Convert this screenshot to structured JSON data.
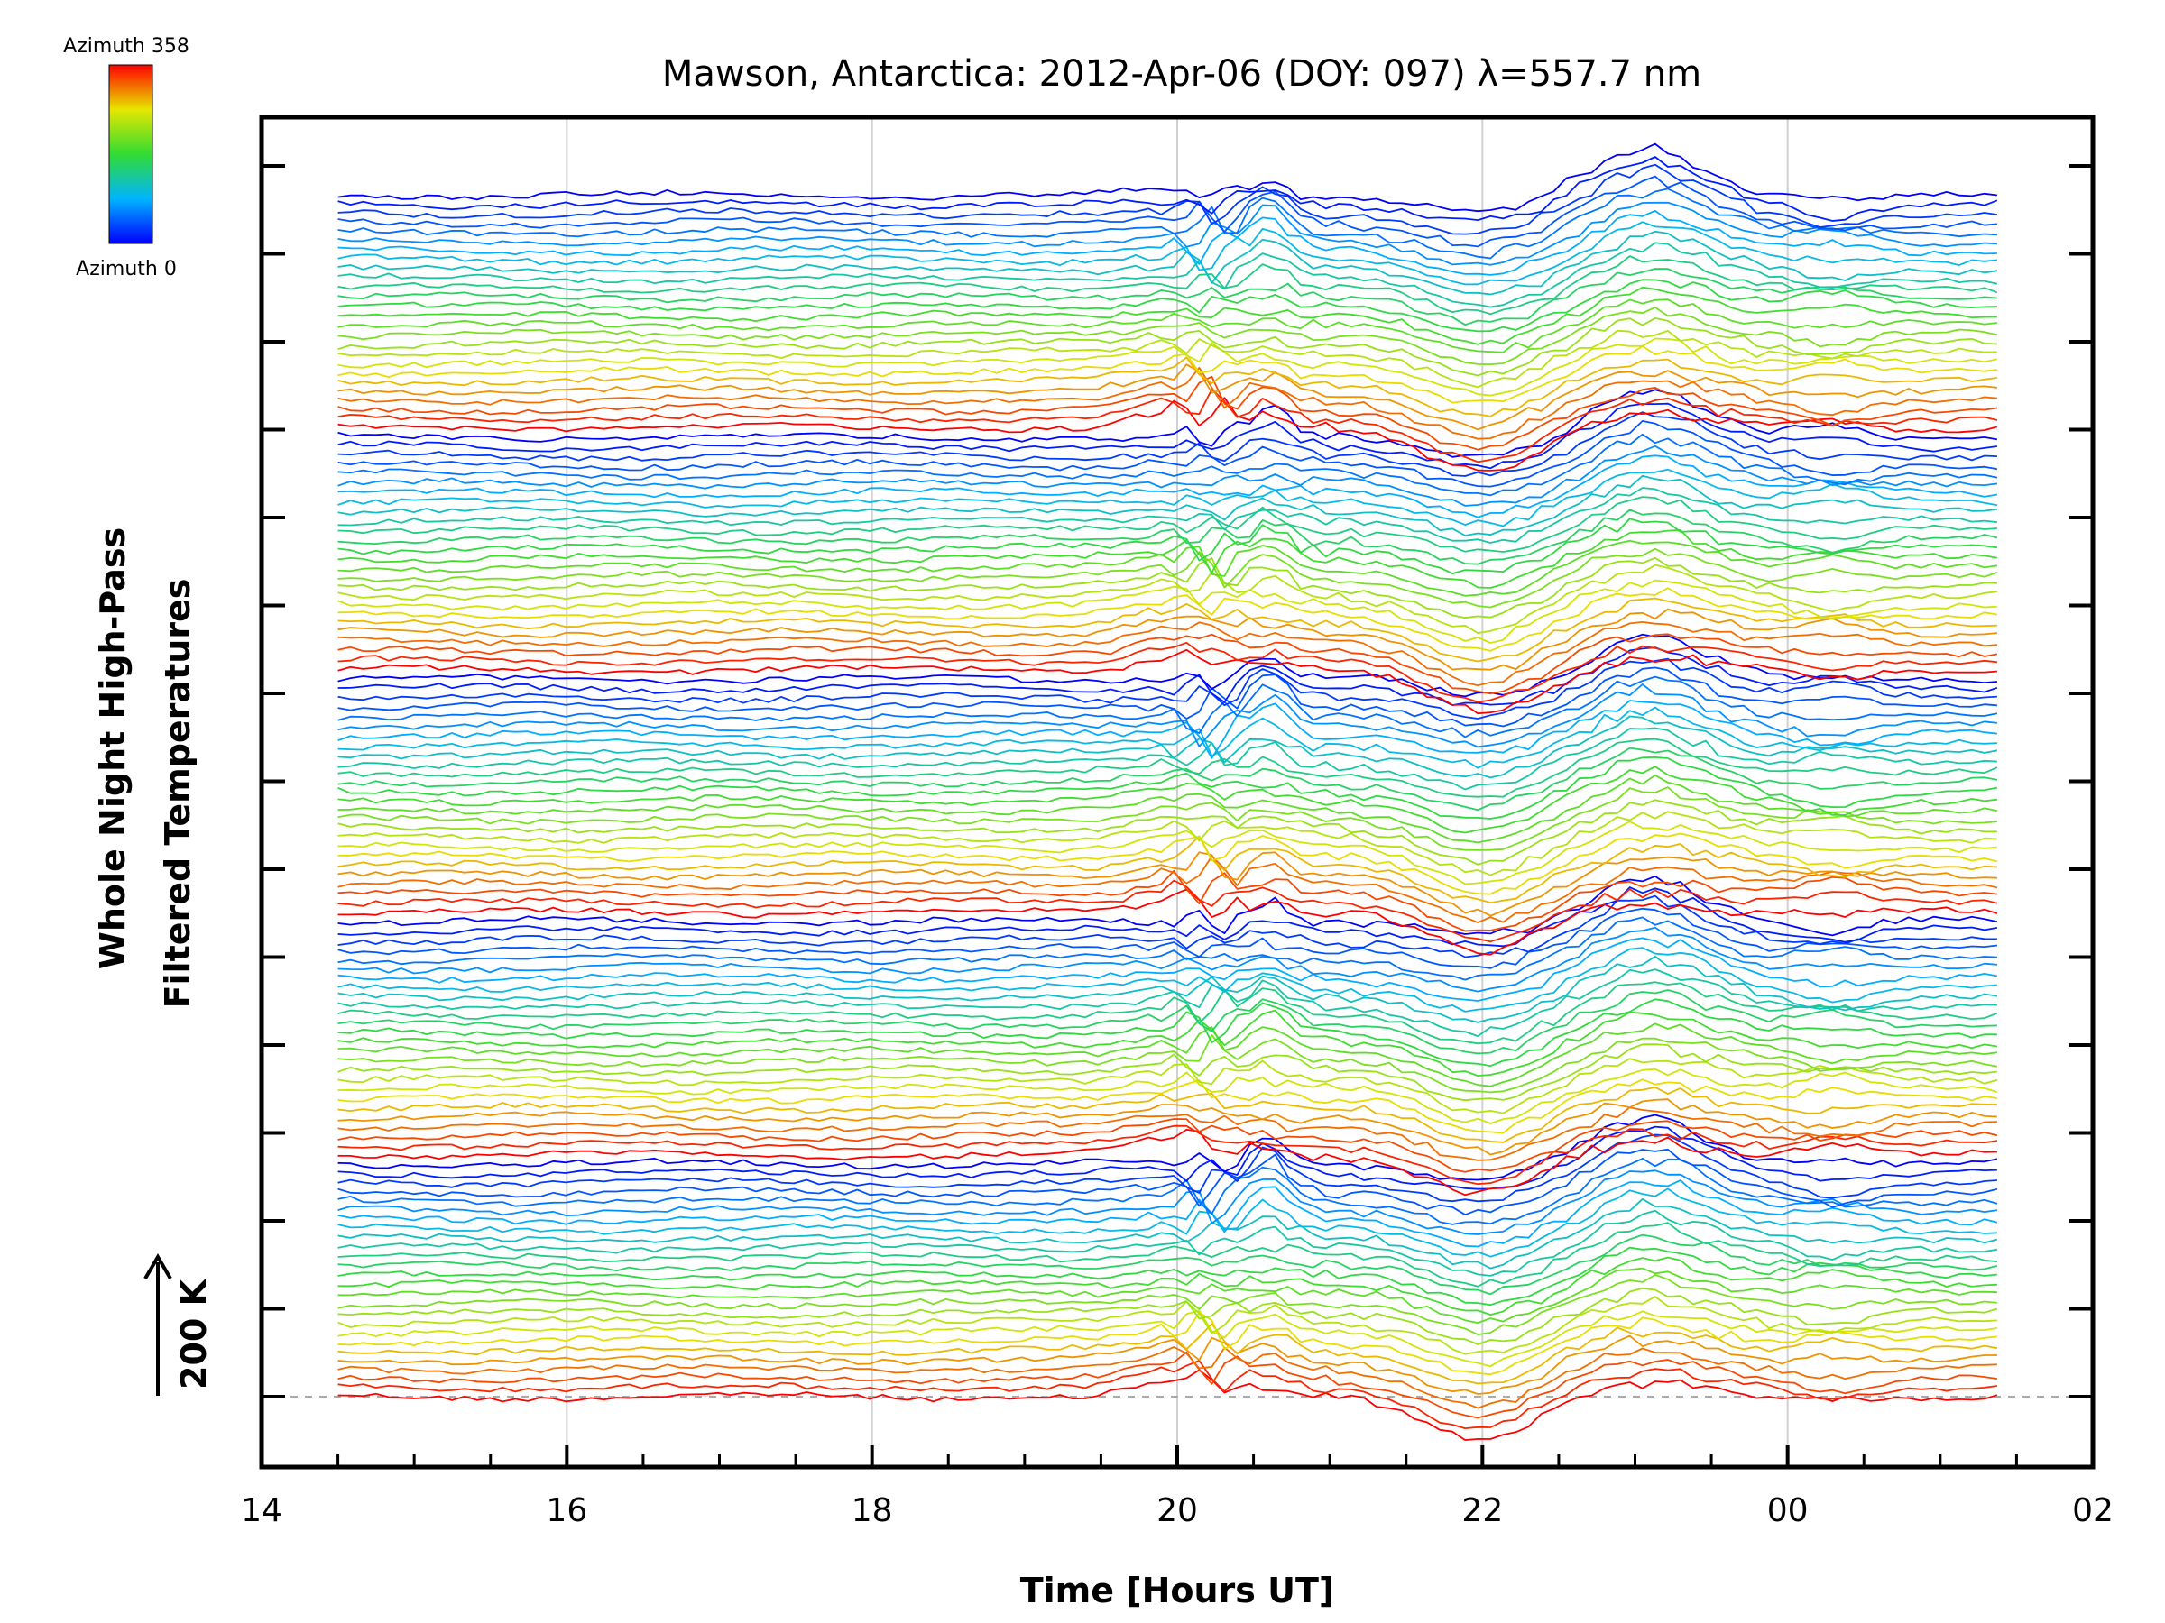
{
  "chart_data": {
    "type": "line",
    "title": "Mawson, Antarctica: 2012-Apr-06 (DOY: 097) λ=557.7 nm",
    "xlabel": "Time [Hours UT]",
    "ylabel_line1": "Whole Night High-Pass",
    "ylabel_line2": "Filtered Temperatures",
    "x_ticks": [
      "14",
      "16",
      "18",
      "20",
      "22",
      "00",
      "02"
    ],
    "xlim_hours": [
      14,
      26
    ],
    "data_x_range_hours": [
      14.5,
      25.45
    ],
    "legend": {
      "top_label": "Azimuth 358",
      "bottom_label": "Azimuth 0",
      "colormap": "rainbow",
      "placement": "top-left",
      "colors": [
        "#0000ff",
        "#00b4ff",
        "#32dc32",
        "#e6e600",
        "#ff0000"
      ]
    },
    "scale_bar_label": "200 K",
    "n_series_stacked": 130,
    "grid": "vertical dotted gridlines at each tick",
    "baseline": "dashed line at bottom trace level",
    "notes": "Stacked, vertically offset high-pass filtered temperature traces colored by azimuth; strong disturbances near 19.5-21 UT and 22-23.5 UT"
  }
}
